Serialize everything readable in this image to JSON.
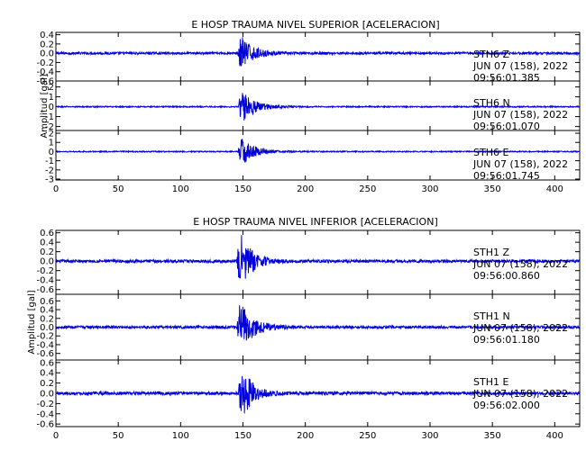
{
  "colors": {
    "trace": "#0000dd",
    "axes": "#000000",
    "text": "#000000",
    "background": "#ffffff"
  },
  "chart_data": [
    {
      "type": "line",
      "title": "E HOSP TRAUMA NIVEL SUPERIOR [ACELERACION]",
      "ylabel": "Amplitud [gal]",
      "xlim": [
        0,
        420
      ],
      "xticks": [
        0,
        50,
        100,
        150,
        200,
        250,
        300,
        350,
        400
      ],
      "xtick_labels": [
        "0",
        "50",
        "100",
        "150",
        "200",
        "250",
        "300",
        "350",
        "400"
      ],
      "grid": false,
      "series": [
        {
          "name": "STH6 Z",
          "station": "STH6",
          "component": "Z",
          "date": "JUN 07 (158), 2022",
          "time": "09:56:01.385",
          "ylim": [
            -0.6,
            0.45
          ],
          "yticks": [
            0.4,
            0.2,
            0.0,
            -0.2,
            -0.4,
            -0.6
          ],
          "ytick_labels": [
            "0.4",
            "0.2",
            "0.0",
            "-0.2",
            "-0.4",
            "-0.6"
          ],
          "noise_amp": 0.025,
          "onset": 145,
          "peak": 0.42,
          "decay": 9
        },
        {
          "name": "STH6 N",
          "station": "STH6",
          "component": "N",
          "date": "JUN 07 (158), 2022",
          "time": "09:56:01.070",
          "ylim": [
            -2.4,
            2.6
          ],
          "yticks": [
            2,
            1,
            0,
            -1,
            -2
          ],
          "ytick_labels": [
            "2",
            "1",
            "0",
            "-1",
            "-2"
          ],
          "noise_amp": 0.06,
          "onset": 146,
          "peak": 1.7,
          "decay": 11
        },
        {
          "name": "STH6 E",
          "station": "STH6",
          "component": "E",
          "date": "JUN 07 (158), 2022",
          "time": "09:56:01.745",
          "ylim": [
            -3.1,
            2.3
          ],
          "yticks": [
            2,
            1,
            0,
            -1,
            -2,
            -3
          ],
          "ytick_labels": [
            "2",
            "1",
            "0",
            "-1",
            "-2",
            "-3"
          ],
          "noise_amp": 0.06,
          "onset": 146,
          "peak": 1.6,
          "decay": 10
        }
      ]
    },
    {
      "type": "line",
      "title": "E HOSP TRAUMA NIVEL INFERIOR [ACELERACION]",
      "ylabel": "Amplitud [gal]",
      "xlim": [
        0,
        420
      ],
      "xticks": [
        0,
        50,
        100,
        150,
        200,
        250,
        300,
        350,
        400
      ],
      "xtick_labels": [
        "0",
        "50",
        "100",
        "150",
        "200",
        "250",
        "300",
        "350",
        "400"
      ],
      "grid": false,
      "series": [
        {
          "name": "STH1 Z",
          "station": "STH1",
          "component": "Z",
          "date": "JUN 07 (158), 2022",
          "time": "09:56:00.860",
          "ylim": [
            -0.7,
            0.65
          ],
          "yticks": [
            0.6,
            0.4,
            0.2,
            0.0,
            -0.2,
            -0.4,
            -0.6
          ],
          "ytick_labels": [
            "0.6",
            "0.4",
            "0.2",
            "0.0",
            "-0.2",
            "-0.4",
            "-0.6"
          ],
          "noise_amp": 0.03,
          "onset": 145,
          "peak": 0.62,
          "decay": 9
        },
        {
          "name": "STH1 N",
          "station": "STH1",
          "component": "N",
          "date": "JUN 07 (158), 2022",
          "time": "09:56:01.180",
          "ylim": [
            -0.75,
            0.75
          ],
          "yticks": [
            0.6,
            0.4,
            0.2,
            0.0,
            -0.2,
            -0.4,
            -0.6
          ],
          "ytick_labels": [
            "0.6",
            "0.4",
            "0.2",
            "0.0",
            "-0.2",
            "-0.4",
            "-0.6"
          ],
          "noise_amp": 0.03,
          "onset": 145,
          "peak": 0.62,
          "decay": 10
        },
        {
          "name": "STH1 E",
          "station": "STH1",
          "component": "E",
          "date": "JUN 07 (158), 2022",
          "time": "09:56:02.000",
          "ylim": [
            -0.65,
            0.65
          ],
          "yticks": [
            0.6,
            0.4,
            0.2,
            0.0,
            -0.2,
            -0.4,
            -0.6
          ],
          "ytick_labels": [
            "0.6",
            "0.4",
            "0.2",
            "0.0",
            "-0.2",
            "-0.4",
            "-0.6"
          ],
          "noise_amp": 0.03,
          "onset": 146,
          "peak": 0.6,
          "decay": 8
        }
      ]
    }
  ]
}
